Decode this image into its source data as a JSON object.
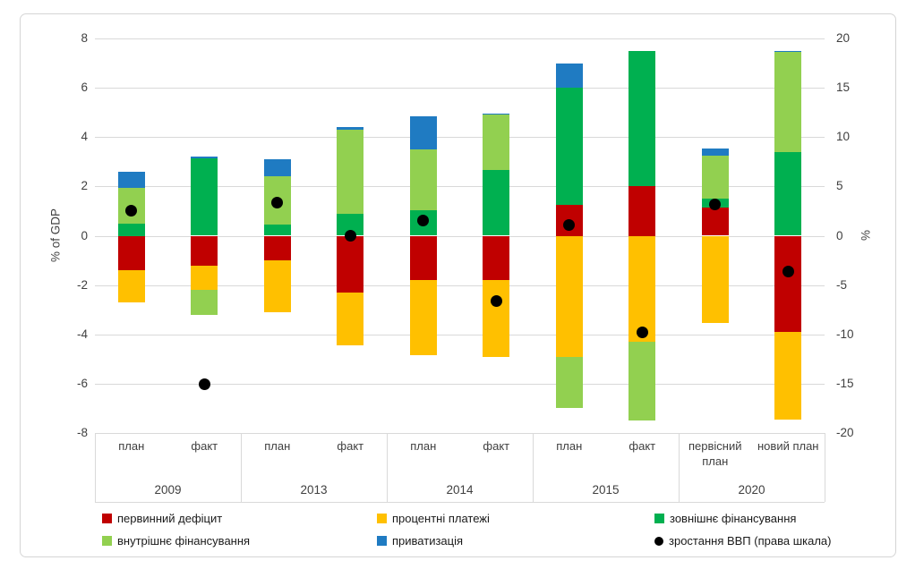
{
  "chart_data": {
    "type": "bar",
    "title": "",
    "groups": [
      {
        "year": "2009",
        "bars": [
          "план",
          "факт"
        ]
      },
      {
        "year": "2013",
        "bars": [
          "план",
          "факт"
        ]
      },
      {
        "year": "2014",
        "bars": [
          "план",
          "факт"
        ]
      },
      {
        "year": "2015",
        "bars": [
          "план",
          "факт"
        ]
      },
      {
        "year": "2020",
        "bars": [
          "первісний план",
          "новий план"
        ]
      }
    ],
    "bar_labels": [
      "план",
      "факт",
      "план",
      "факт",
      "план",
      "факт",
      "план",
      "факт",
      "первісний план",
      "новий план"
    ],
    "series": [
      {
        "name": "первинний дефіцит",
        "color": "#C00000",
        "values": [
          -1.4,
          -1.2,
          -1.0,
          -2.3,
          -1.8,
          -1.8,
          1.25,
          2.0,
          1.15,
          -3.9
        ]
      },
      {
        "name": "процентні платежі",
        "color": "#FFC000",
        "values": [
          -1.3,
          -1.0,
          -2.1,
          -2.15,
          -3.05,
          -3.1,
          -4.9,
          -4.3,
          -3.55,
          -3.55
        ]
      },
      {
        "name": "зовнішнє фінансування",
        "color": "#00B050",
        "values": [
          0.5,
          3.15,
          0.45,
          0.9,
          1.05,
          2.65,
          4.75,
          5.5,
          0.35,
          3.4
        ]
      },
      {
        "name": "внутрішнє фінансування",
        "color": "#92D050",
        "values": [
          1.45,
          -1.0,
          1.95,
          3.4,
          2.45,
          2.25,
          -2.1,
          -3.2,
          1.75,
          4.05
        ]
      },
      {
        "name": "приватизація",
        "color": "#1F7BC2",
        "values": [
          0.65,
          0.05,
          0.7,
          0.1,
          1.35,
          0.05,
          1.0,
          0,
          0.3,
          0.05
        ]
      }
    ],
    "dots": {
      "name": "зростання ВВП (права шкала)",
      "color": "#000000",
      "right_scale_values": [
        2.5,
        -15.1,
        3.4,
        0.0,
        1.5,
        -6.6,
        1.1,
        -9.8,
        3.2,
        -3.6
      ]
    },
    "left_axis": {
      "title": "% of GDP",
      "min": -8,
      "max": 8,
      "ticks": [
        8,
        6,
        4,
        2,
        0,
        -2,
        -4,
        -6,
        -8
      ]
    },
    "right_axis": {
      "title": "%",
      "min": -20,
      "max": 20,
      "ticks": [
        20,
        15,
        10,
        5,
        0,
        -5,
        -10,
        -15,
        -20
      ]
    },
    "legend": [
      {
        "label": "первинний дефіцит",
        "color": "#C00000",
        "shape": "square"
      },
      {
        "label": "процентні платежі",
        "color": "#FFC000",
        "shape": "square"
      },
      {
        "label": "зовнішнє фінансування",
        "color": "#00B050",
        "shape": "square"
      },
      {
        "label": "внутрішнє фінансування",
        "color": "#92D050",
        "shape": "square"
      },
      {
        "label": "приватизація",
        "color": "#1F7BC2",
        "shape": "square"
      },
      {
        "label": "зростання ВВП (права шкала)",
        "color": "#000000",
        "shape": "circle"
      }
    ]
  }
}
